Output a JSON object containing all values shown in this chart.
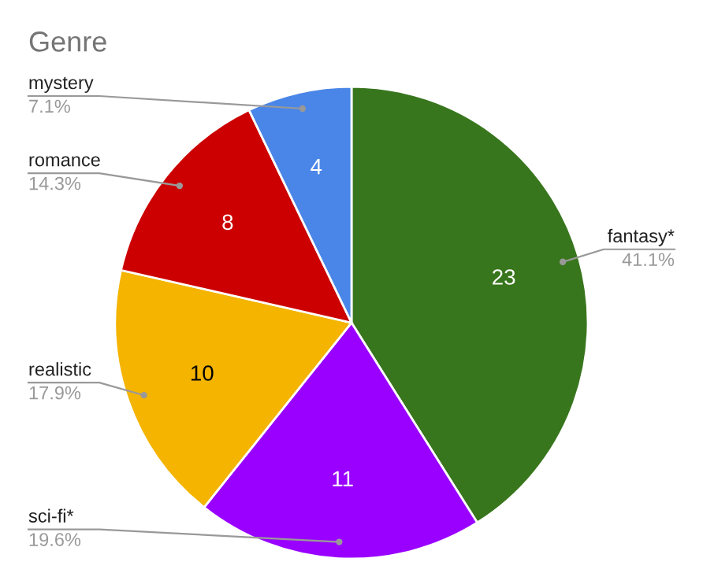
{
  "chart_data": {
    "type": "pie",
    "title": "Genre",
    "categories": [
      "fantasy*",
      "sci-fi*",
      "realistic",
      "romance",
      "mystery"
    ],
    "values": [
      23,
      11,
      10,
      8,
      4
    ],
    "colors": [
      "#38761d",
      "#9900ff",
      "#f4b400",
      "#cc0000",
      "#4a86e8"
    ],
    "value_labels": [
      "23",
      "11",
      "10",
      "8",
      "4"
    ],
    "annotations": [
      "41.1%",
      "19.6%",
      "17.9%",
      "14.3%",
      "7.1%"
    ],
    "legend": false
  }
}
